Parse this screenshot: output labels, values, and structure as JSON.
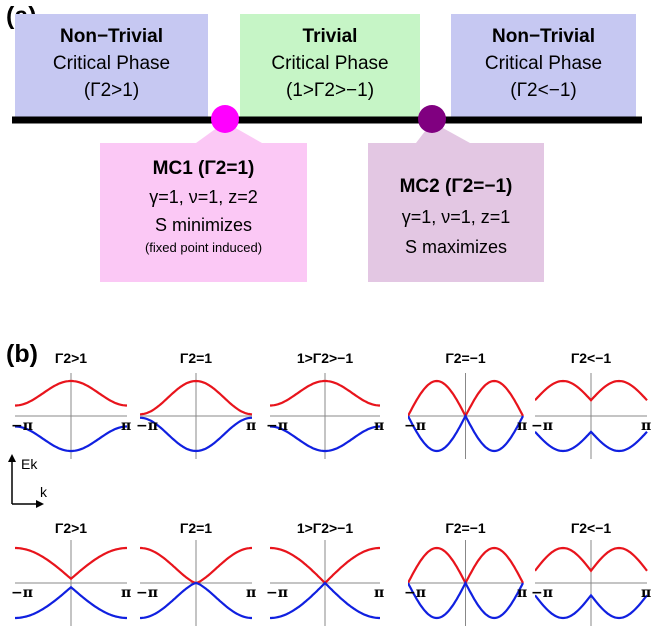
{
  "panel_a": {
    "label": "(a)",
    "boxes": [
      {
        "title": "Non−Trivial",
        "line1": "Critical Phase",
        "line2": "(Γ2>1)",
        "color": "#c6c8f2"
      },
      {
        "title": "Trivial",
        "line1": "Critical Phase",
        "line2": "(1>Γ2>−1)",
        "color": "#c6f5c6"
      },
      {
        "title": "Non−Trivial",
        "line1": "Critical Phase",
        "line2": "(Γ2<−1)",
        "color": "#c6c8f2"
      }
    ],
    "mc1": {
      "title": "MC1 (Γ2=1)",
      "exponents": "γ=1, ν=1, z=2",
      "entropy": "S minimizes",
      "note": "(fixed point induced)",
      "color": "#fbc8f5",
      "dot_color": "#ff00ff"
    },
    "mc2": {
      "title": "MC2 (Γ2=−1)",
      "exponents": "γ=1, ν=1, z=1",
      "entropy": "S maximizes",
      "color": "#e3c7e3",
      "dot_color": "#800080"
    }
  },
  "panel_b": {
    "label": "(b)",
    "row_titles": [
      "Γ2>1",
      "Γ2=1",
      "1>Γ2>−1",
      "Γ2=−1",
      "Γ2<−1"
    ],
    "tick_left": "−π",
    "tick_right": "π",
    "axis_y": "Ek",
    "axis_x": "k",
    "band_colors": {
      "upper": "#e8141c",
      "lower": "#1020e0"
    }
  }
}
